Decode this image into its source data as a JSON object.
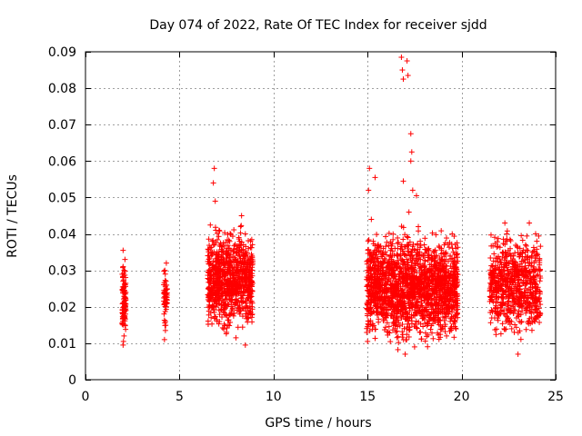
{
  "chart_data": {
    "type": "scatter",
    "title": "Day 074 of 2022, Rate Of TEC Index for receiver sjdd",
    "xlabel": "GPS time / hours",
    "ylabel": "ROTI / TECUs",
    "xlim": [
      0,
      25
    ],
    "ylim": [
      0,
      0.09
    ],
    "xticks": [
      0,
      5,
      10,
      15,
      20,
      25
    ],
    "yticks": [
      0,
      0.01,
      0.02,
      0.03,
      0.04,
      0.05,
      0.06,
      0.07,
      0.08,
      0.09
    ],
    "grid": true,
    "marker": "+",
    "color": "#ff0000",
    "series": [
      {
        "name": "ROTI",
        "points": [
          [
            2.0,
            0.0095
          ],
          [
            2.05,
            0.012
          ],
          [
            2.1,
            0.015
          ],
          [
            2.0,
            0.018
          ],
          [
            2.08,
            0.021
          ],
          [
            2.12,
            0.024
          ],
          [
            2.0,
            0.027
          ],
          [
            2.05,
            0.03
          ],
          [
            2.1,
            0.033
          ],
          [
            2.0,
            0.0355
          ],
          [
            2.15,
            0.019
          ],
          [
            2.02,
            0.0105
          ],
          [
            4.2,
            0.011
          ],
          [
            4.25,
            0.016
          ],
          [
            4.3,
            0.02
          ],
          [
            4.2,
            0.024
          ],
          [
            4.28,
            0.027
          ],
          [
            4.22,
            0.03
          ],
          [
            4.3,
            0.032
          ],
          [
            4.25,
            0.0135
          ],
          [
            6.6,
            0.02
          ],
          [
            6.8,
            0.0235
          ],
          [
            7.0,
            0.029
          ],
          [
            7.2,
            0.019
          ],
          [
            6.75,
            0.035
          ],
          [
            6.85,
            0.058
          ],
          [
            6.8,
            0.054
          ],
          [
            6.9,
            0.049
          ],
          [
            7.1,
            0.041
          ],
          [
            7.4,
            0.026
          ],
          [
            7.6,
            0.036
          ],
          [
            7.8,
            0.022
          ],
          [
            8.0,
            0.028
          ],
          [
            8.2,
            0.038
          ],
          [
            8.3,
            0.045
          ],
          [
            8.4,
            0.031
          ],
          [
            8.5,
            0.04
          ],
          [
            8.6,
            0.018
          ],
          [
            8.7,
            0.025
          ],
          [
            8.8,
            0.033
          ],
          [
            8.5,
            0.0095
          ],
          [
            7.5,
            0.013
          ],
          [
            8.0,
            0.0115
          ],
          [
            7.0,
            0.016
          ],
          [
            8.25,
            0.042
          ],
          [
            15.0,
            0.0105
          ],
          [
            15.1,
            0.058
          ],
          [
            15.05,
            0.052
          ],
          [
            15.2,
            0.044
          ],
          [
            15.4,
            0.0555
          ],
          [
            15.3,
            0.038
          ],
          [
            15.6,
            0.03
          ],
          [
            15.8,
            0.022
          ],
          [
            16.0,
            0.017
          ],
          [
            16.2,
            0.034
          ],
          [
            16.4,
            0.026
          ],
          [
            16.5,
            0.013
          ],
          [
            16.6,
            0.036
          ],
          [
            16.8,
            0.0885
          ],
          [
            16.85,
            0.085
          ],
          [
            16.9,
            0.0825
          ],
          [
            17.1,
            0.0875
          ],
          [
            17.15,
            0.0835
          ],
          [
            17.3,
            0.0675
          ],
          [
            17.35,
            0.0625
          ],
          [
            17.3,
            0.06
          ],
          [
            16.9,
            0.0545
          ],
          [
            17.4,
            0.052
          ],
          [
            17.6,
            0.0505
          ],
          [
            17.2,
            0.046
          ],
          [
            17.7,
            0.042
          ],
          [
            17.8,
            0.038
          ],
          [
            17.0,
            0.007
          ],
          [
            17.5,
            0.009
          ],
          [
            18.0,
            0.028
          ],
          [
            18.2,
            0.021
          ],
          [
            18.4,
            0.033
          ],
          [
            18.6,
            0.016
          ],
          [
            18.8,
            0.025
          ],
          [
            19.0,
            0.03
          ],
          [
            19.2,
            0.012
          ],
          [
            19.4,
            0.022
          ],
          [
            19.5,
            0.04
          ],
          [
            19.6,
            0.027
          ],
          [
            19.7,
            0.019
          ],
          [
            21.6,
            0.022
          ],
          [
            21.8,
            0.028
          ],
          [
            22.0,
            0.018
          ],
          [
            22.2,
            0.035
          ],
          [
            22.3,
            0.043
          ],
          [
            22.4,
            0.04
          ],
          [
            22.6,
            0.025
          ],
          [
            22.8,
            0.013
          ],
          [
            23.0,
            0.03
          ],
          [
            23.0,
            0.007
          ],
          [
            23.2,
            0.02
          ],
          [
            23.4,
            0.037
          ],
          [
            23.5,
            0.033
          ],
          [
            23.6,
            0.043
          ],
          [
            23.8,
            0.028
          ],
          [
            23.9,
            0.016
          ],
          [
            24.0,
            0.038
          ],
          [
            24.1,
            0.022
          ]
        ]
      }
    ],
    "dense_clusters": [
      {
        "x_range": [
          1.95,
          2.15
        ],
        "y_range": [
          0.0095,
          0.0355
        ],
        "count": 90
      },
      {
        "x_range": [
          4.15,
          4.35
        ],
        "y_range": [
          0.012,
          0.032
        ],
        "count": 50
      },
      {
        "x_range": [
          6.5,
          8.9
        ],
        "y_range": [
          0.01,
          0.045
        ],
        "count": 900
      },
      {
        "x_range": [
          14.95,
          19.8
        ],
        "y_range": [
          0.006,
          0.045
        ],
        "count": 1800
      },
      {
        "x_range": [
          21.5,
          24.2
        ],
        "y_range": [
          0.008,
          0.044
        ],
        "count": 700
      }
    ]
  }
}
